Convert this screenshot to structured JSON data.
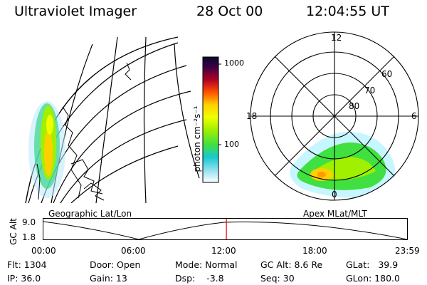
{
  "header": {
    "instrument": "Ultraviolet Imager",
    "date": "28 Oct 00",
    "time": "12:04:55 UT"
  },
  "colorbar": {
    "label": "photon cm⁻²s⁻¹",
    "ticks": [
      "1000",
      "100"
    ],
    "scale": "log",
    "colors": [
      "#0a0a30",
      "#3c0044",
      "#7a0040",
      "#b00024",
      "#e00010",
      "#ff5000",
      "#ff9a00",
      "#ffd000",
      "#f0ff00",
      "#a0f000",
      "#40e040",
      "#10d890",
      "#18c8d0",
      "#90e0f0",
      "#d8f0f8",
      "#ffffff"
    ]
  },
  "left_panel": {
    "label": "Geographic Lat/Lon"
  },
  "right_panel": {
    "label": "Apex MLat/MLT",
    "mlt_labels": [
      "12",
      "18",
      "6",
      "0"
    ],
    "lat_labels": [
      "60",
      "70",
      "80"
    ]
  },
  "timeline": {
    "ylabel": "GC Alt",
    "yticks": [
      "9.0",
      "1.8"
    ],
    "xticks": [
      "00:00",
      "06:00",
      "12:00",
      "18:00",
      "23:59"
    ],
    "marker_time": "12:04",
    "marker_color": "#dd0000"
  },
  "footer": {
    "flt": "Flt: 1304",
    "ip": "IP: 36.0",
    "door": "Door: Open",
    "gain": "Gain: 13",
    "mode": "Mode: Normal",
    "dsp": "Dsp:    -3.8",
    "gcalt": "GC Alt: 8.6 Re",
    "seq": "Seq: 30",
    "glat": "GLat:   39.9",
    "glon": "GLon: 180.0"
  }
}
